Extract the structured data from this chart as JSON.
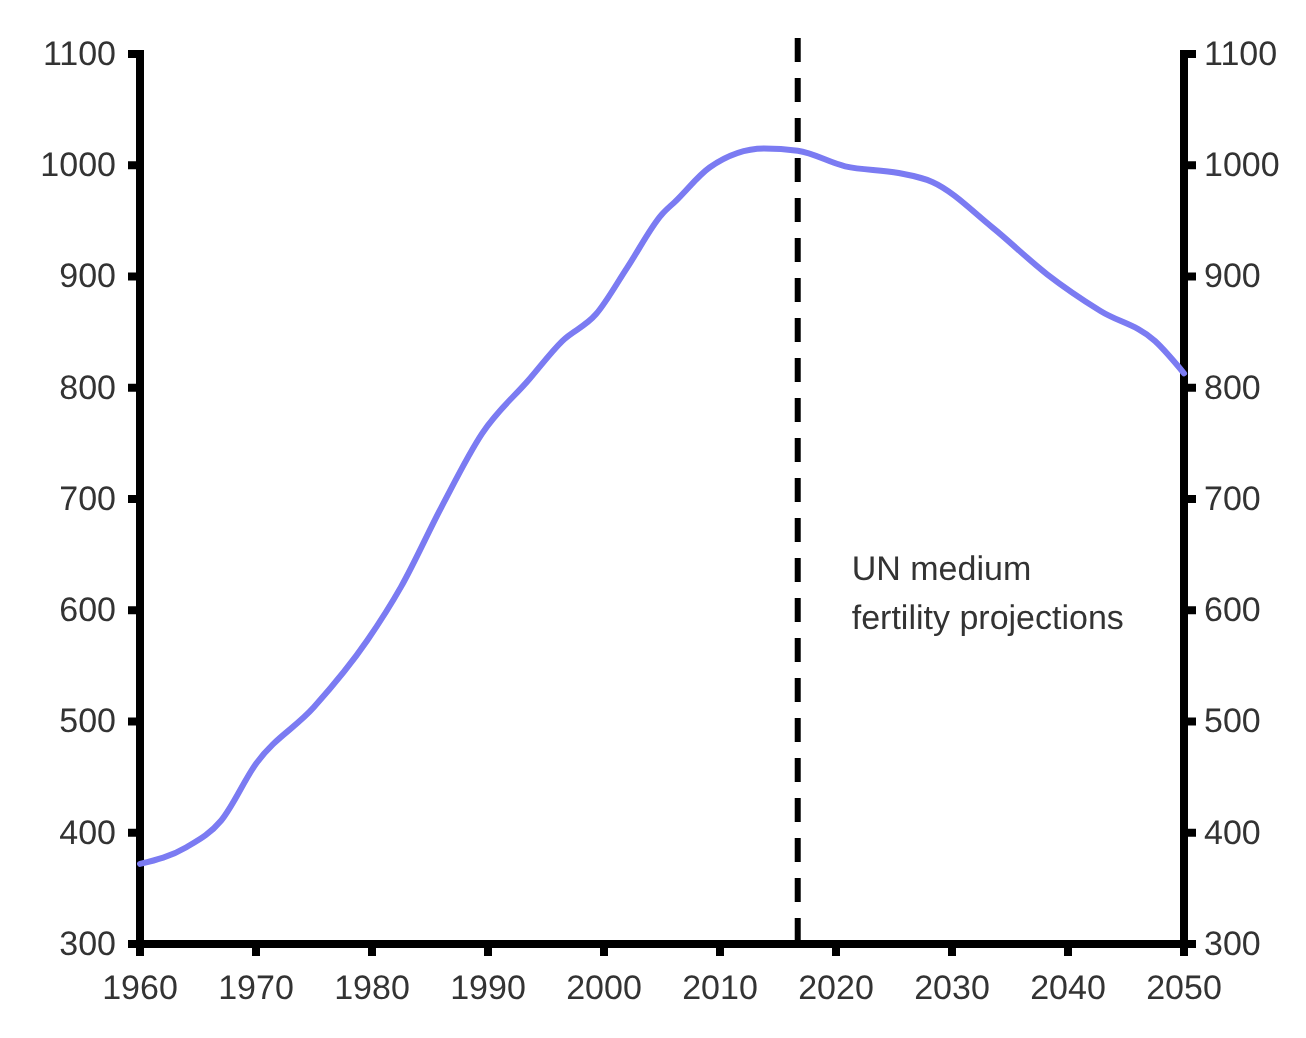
{
  "chart_data": {
    "type": "line",
    "xlim": [
      1960,
      2050
    ],
    "xticks": [
      1960,
      1970,
      1980,
      1990,
      2000,
      2010,
      2020,
      2030,
      2040,
      2050
    ],
    "ylim": [
      300,
      1100
    ],
    "yticks": [
      300,
      400,
      500,
      600,
      700,
      800,
      900,
      1000,
      1100
    ],
    "y2lim": [
      300,
      1100
    ],
    "y2ticks": [
      300,
      400,
      500,
      600,
      700,
      800,
      900,
      1000,
      1100
    ],
    "grid": false,
    "marker": "none",
    "line_style": "solid",
    "x": [
      1960,
      1964,
      1967,
      1970,
      1975,
      1979.6,
      1982.5,
      1986,
      1989.5,
      1993.5,
      1996.4,
      1999.3,
      2002,
      2005,
      2006.2,
      2009.1,
      2013.8,
      2016.7,
      2020.8,
      2025.4,
      2028.3,
      2033.5,
      2038.2,
      2042.8,
      2047.5,
      2050
    ],
    "series": [
      {
        "color": "#7b7bf2",
        "values": [
          372,
          387,
          411,
          462,
          513,
          573,
          621,
          693,
          759,
          807,
          842,
          866,
          908,
          956,
          968,
          998,
          1015,
          1013,
          999,
          993,
          985,
          944,
          902,
          869,
          842,
          813
        ]
      }
    ],
    "ref_lines": [
      {
        "axis": "x",
        "value": 2016.7,
        "label": "UN medium\nfertility projections",
        "color": "#000000",
        "line_style": "dashed"
      }
    ]
  }
}
